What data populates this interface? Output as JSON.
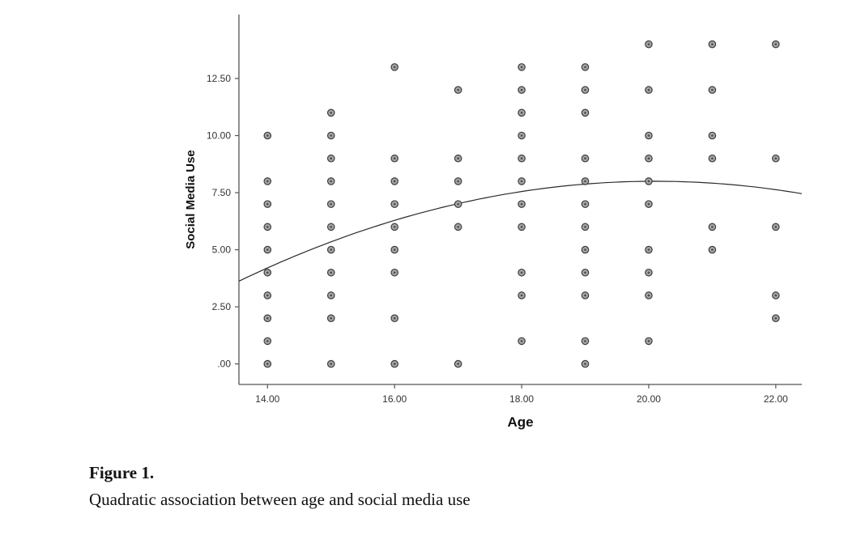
{
  "figure": {
    "label": "Figure 1.",
    "caption": "Quadratic association between age and social media use"
  },
  "chart_data": {
    "type": "scatter",
    "title": "",
    "xlabel": "Age",
    "ylabel": "Social Media Use",
    "xlim": [
      13.55,
      22.41
    ],
    "ylim": [
      -0.9,
      15.3
    ],
    "x_ticks": [
      14,
      16,
      18,
      20,
      22
    ],
    "x_tick_labels": [
      "14.00",
      "16.00",
      "18.00",
      "20.00",
      "22.00"
    ],
    "y_ticks": [
      0,
      2.5,
      5,
      7.5,
      10,
      12.5
    ],
    "y_tick_labels": [
      ".00",
      "2.50",
      "5.00",
      "7.50",
      "10.00",
      "12.50"
    ],
    "grid": false,
    "legend": "none",
    "points": [
      [
        14,
        0
      ],
      [
        14,
        1
      ],
      [
        14,
        2
      ],
      [
        14,
        3
      ],
      [
        14,
        4
      ],
      [
        14,
        5
      ],
      [
        14,
        6
      ],
      [
        14,
        7
      ],
      [
        14,
        8
      ],
      [
        14,
        10
      ],
      [
        15,
        0
      ],
      [
        15,
        2
      ],
      [
        15,
        3
      ],
      [
        15,
        4
      ],
      [
        15,
        5
      ],
      [
        15,
        6
      ],
      [
        15,
        7
      ],
      [
        15,
        8
      ],
      [
        15,
        9
      ],
      [
        15,
        10
      ],
      [
        15,
        11
      ],
      [
        16,
        0
      ],
      [
        16,
        2
      ],
      [
        16,
        4
      ],
      [
        16,
        5
      ],
      [
        16,
        6
      ],
      [
        16,
        7
      ],
      [
        16,
        8
      ],
      [
        16,
        9
      ],
      [
        16,
        13
      ],
      [
        17,
        0
      ],
      [
        17,
        6
      ],
      [
        17,
        7
      ],
      [
        17,
        8
      ],
      [
        17,
        9
      ],
      [
        17,
        12
      ],
      [
        18,
        1
      ],
      [
        18,
        3
      ],
      [
        18,
        4
      ],
      [
        18,
        6
      ],
      [
        18,
        7
      ],
      [
        18,
        8
      ],
      [
        18,
        9
      ],
      [
        18,
        10
      ],
      [
        18,
        11
      ],
      [
        18,
        12
      ],
      [
        18,
        13
      ],
      [
        19,
        0
      ],
      [
        19,
        1
      ],
      [
        19,
        3
      ],
      [
        19,
        4
      ],
      [
        19,
        5
      ],
      [
        19,
        6
      ],
      [
        19,
        7
      ],
      [
        19,
        8
      ],
      [
        19,
        9
      ],
      [
        19,
        11
      ],
      [
        19,
        12
      ],
      [
        19,
        13
      ],
      [
        20,
        1
      ],
      [
        20,
        3
      ],
      [
        20,
        4
      ],
      [
        20,
        5
      ],
      [
        20,
        7
      ],
      [
        20,
        8
      ],
      [
        20,
        9
      ],
      [
        20,
        10
      ],
      [
        20,
        12
      ],
      [
        20,
        14
      ],
      [
        21,
        5
      ],
      [
        21,
        6
      ],
      [
        21,
        9
      ],
      [
        21,
        10
      ],
      [
        21,
        12
      ],
      [
        21,
        14
      ],
      [
        22,
        2
      ],
      [
        22,
        3
      ],
      [
        22,
        6
      ],
      [
        22,
        9
      ],
      [
        22,
        14
      ]
    ],
    "fit_curve": {
      "type": "quadratic",
      "a": -0.102,
      "h": 20.1,
      "k": 8.0
    },
    "style": {
      "marker_fill": "#a6a6a6",
      "marker_stroke": "#3c3c3c",
      "marker_inner": "#4a4a4a",
      "marker_radius": 4.2,
      "axis_color": "#555555",
      "tick_label_color": "#333333",
      "curve_color": "#2b2b2b"
    }
  }
}
